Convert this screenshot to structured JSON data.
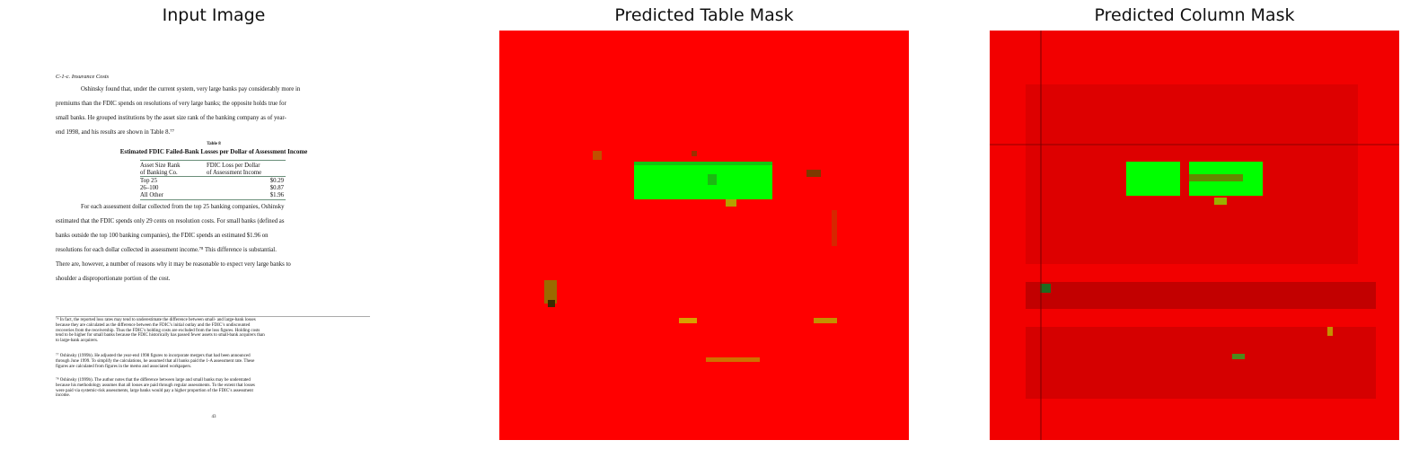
{
  "panels": {
    "input_title": "Input Image",
    "table_title": "Predicted Table Mask",
    "column_title": "Predicted Column Mask"
  },
  "colors": {
    "background": "#ff0000",
    "table": "#00ff00",
    "column_bg": "#f20000"
  },
  "document": {
    "section": "C-1-c.  Insurance Costs",
    "para1": [
      "Oshinsky found that, under the current system, very large banks pay considerably more in",
      "premiums than the FDIC spends on resolutions of very large banks; the opposite holds true for",
      "small banks.  He grouped institutions by the asset size rank of the banking company as of year-",
      "end 1998, and his results are shown in Table 8.⁷⁷"
    ],
    "table_number": "Table 8",
    "table_title": "Estimated FDIC Failed-Bank Losses per Dollar of Assessment Income",
    "table_headers": [
      [
        "Asset Size Rank",
        "of Banking Co."
      ],
      [
        "FDIC Loss per Dollar",
        "of Assessment Income"
      ]
    ],
    "table_rows": [
      {
        "rank": "Top 25",
        "loss": "$0.29"
      },
      {
        "rank": "26–100",
        "loss": "$0.87"
      },
      {
        "rank": "All Other",
        "loss": "$1.96"
      }
    ],
    "para2": [
      "For each assessment dollar collected from the top 25 banking companies, Oshinsky",
      "estimated that the FDIC spends only 29 cents on resolution costs.  For small banks (defined as",
      "banks outside the top 100 banking companies), the FDIC spends an estimated $1.96 on",
      "resolutions for each dollar collected in assessment income.⁷⁸  This difference is substantial.",
      "There are, however, a number of reasons why it may be reasonable to expect very large banks to",
      "shoulder a disproportionate portion of the cost."
    ],
    "footnote1": [
      "⁷⁶ In fact, the reported loss rates may tend to underestimate the difference between small- and large-bank losses",
      "because they are calculated as the difference between the FDIC’s initial outlay and the FDIC’s undiscounted",
      "recoveries from the receivership.  Thus the FDIC’s holding costs are excluded from the loss figures.  Holding costs",
      "tend to be higher for small banks because the FDIC historically has passed fewer assets to small-bank acquirers than",
      "to large-bank acquirers."
    ],
    "footnote2": [
      "⁷⁷ Oshinsky (1999b).  He adjusted the year-end 1998 figures to incorporate mergers that had been announced",
      "through June 1999.  To simplify the calculations, he assumed that all banks paid the 1-A assessment rate.  These",
      "figures are calculated from figures in the memo and associated workpapers."
    ],
    "footnote3": [
      "⁷⁸ Oshinsky (1999b).  The author notes that the difference between large and small banks may be understated",
      "because his methodology assumes that all losses are paid through regular assessments.  To the extent that losses",
      "were paid via systemic-risk assessments, large banks would pay a higher proportion of the FDIC’s assessment",
      "income."
    ],
    "page_number": "43"
  }
}
